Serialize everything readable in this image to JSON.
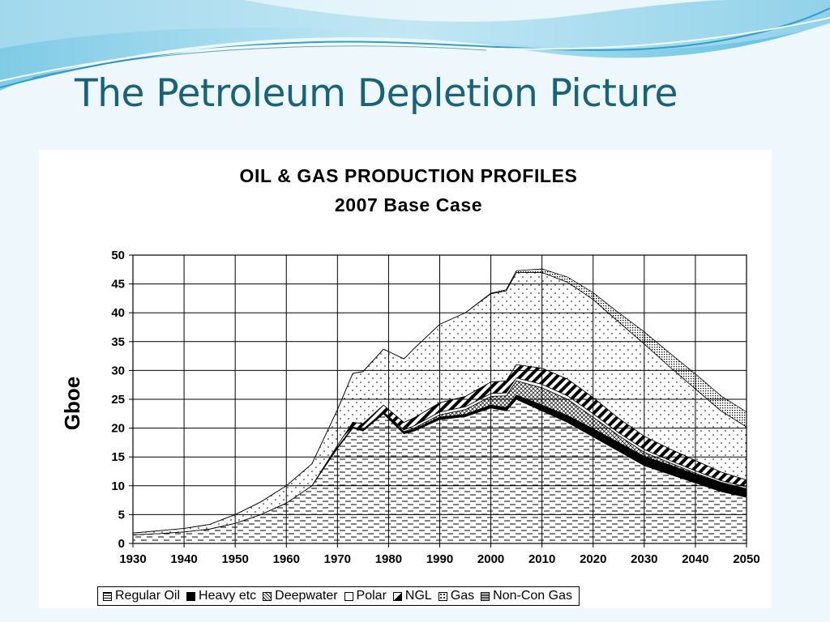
{
  "slide": {
    "title": "The Petroleum Depletion Picture",
    "colors": {
      "title": "#15637d",
      "wave_dark": "#2f9fcf",
      "wave_light": "#a8dcee"
    }
  },
  "chart_data": {
    "type": "area",
    "stacked": true,
    "title": "OIL & GAS PRODUCTION PROFILES",
    "subtitle": "2007 Base Case",
    "xlabel": "",
    "ylabel": "Gboe",
    "xlim": [
      1930,
      2050
    ],
    "ylim": [
      0,
      50
    ],
    "xticks": [
      1930,
      1940,
      1950,
      1960,
      1970,
      1980,
      1990,
      2000,
      2010,
      2020,
      2030,
      2040,
      2050
    ],
    "yticks": [
      0,
      5,
      10,
      15,
      20,
      25,
      30,
      35,
      40,
      45,
      50
    ],
    "grid": true,
    "legend_position": "bottom",
    "x": [
      1930,
      1935,
      1940,
      1945,
      1950,
      1955,
      1960,
      1965,
      1970,
      1973,
      1975,
      1979,
      1983,
      1985,
      1990,
      1995,
      2000,
      2003,
      2005,
      2010,
      2015,
      2020,
      2025,
      2030,
      2035,
      2040,
      2045,
      2050
    ],
    "series": [
      {
        "name": "Regular Oil",
        "pattern": "dashes",
        "values": [
          1.5,
          1.7,
          2.0,
          2.5,
          3.5,
          5.0,
          7.0,
          10.0,
          16.5,
          20.0,
          19.5,
          22.5,
          19.0,
          19.5,
          21.5,
          22.0,
          23.5,
          23.0,
          25.0,
          23.0,
          21.0,
          18.5,
          16.0,
          13.5,
          12.0,
          10.5,
          9.0,
          8.0
        ]
      },
      {
        "name": "Heavy etc",
        "pattern": "solid-black",
        "values": [
          0,
          0,
          0,
          0,
          0,
          0,
          0,
          0,
          0.2,
          0.2,
          0.3,
          0.3,
          0.3,
          0.3,
          0.4,
          0.4,
          0.5,
          0.6,
          0.7,
          1.0,
          1.2,
          1.4,
          1.5,
          1.6,
          1.6,
          1.5,
          1.5,
          1.4
        ]
      },
      {
        "name": "Deepwater",
        "pattern": "checks",
        "values": [
          0,
          0,
          0,
          0,
          0,
          0,
          0,
          0,
          0,
          0,
          0,
          0,
          0.1,
          0.2,
          0.4,
          0.8,
          1.5,
          2.0,
          2.5,
          3.0,
          2.8,
          2.0,
          1.2,
          0.7,
          0.4,
          0.2,
          0.1,
          0.1
        ]
      },
      {
        "name": "Polar",
        "pattern": "white",
        "values": [
          0,
          0,
          0,
          0,
          0,
          0,
          0,
          0,
          0,
          0,
          0,
          0,
          0.3,
          0.4,
          0.5,
          0.5,
          0.5,
          0.5,
          0.5,
          0.6,
          0.6,
          0.6,
          0.5,
          0.5,
          0.4,
          0.4,
          0.3,
          0.3
        ]
      },
      {
        "name": "NGL",
        "pattern": "diagonal-stripes",
        "values": [
          0,
          0,
          0,
          0,
          0,
          0,
          0,
          0,
          0.3,
          0.8,
          1.0,
          1.2,
          1.3,
          1.4,
          1.6,
          1.8,
          2.0,
          2.1,
          2.3,
          2.8,
          2.9,
          2.8,
          2.5,
          2.3,
          2.0,
          1.8,
          1.5,
          1.2
        ]
      },
      {
        "name": "Gas",
        "pattern": "dots",
        "values": [
          0.3,
          0.5,
          0.6,
          0.8,
          1.5,
          2.2,
          3.0,
          3.8,
          6.2,
          8.5,
          9.0,
          9.7,
          11.0,
          12.0,
          13.6,
          14.5,
          15.3,
          15.6,
          16.0,
          16.6,
          16.8,
          17.0,
          16.7,
          16.0,
          14.2,
          12.4,
          10.6,
          9.2
        ]
      },
      {
        "name": "Non-Con Gas",
        "pattern": "grid",
        "values": [
          0,
          0,
          0,
          0,
          0,
          0,
          0,
          0,
          0,
          0,
          0,
          0,
          0,
          0,
          0,
          0,
          0.1,
          0.2,
          0.3,
          0.6,
          0.9,
          1.2,
          1.6,
          2.1,
          2.4,
          2.6,
          2.6,
          2.6
        ]
      }
    ]
  }
}
